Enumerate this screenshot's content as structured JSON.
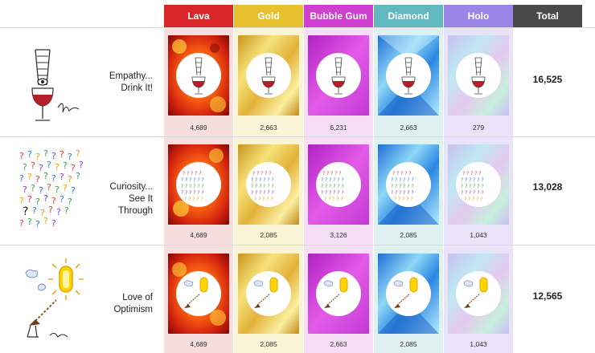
{
  "columns": [
    {
      "label": "Lava",
      "header_color": "#d9262b",
      "col_bg": "#f6dede"
    },
    {
      "label": "Gold",
      "header_color": "#e7c02e",
      "col_bg": "#faf3d6"
    },
    {
      "label": "Bubble Gum",
      "header_color": "#cf3fd0",
      "col_bg": "#f5def6"
    },
    {
      "label": "Diamond",
      "header_color": "#61b9bf",
      "col_bg": "#dff0f1"
    },
    {
      "label": "Holo",
      "header_color": "#9a84e6",
      "col_bg": "#e8e3f8"
    }
  ],
  "total_header": {
    "label": "Total",
    "color": "#4a4a4a"
  },
  "rows": [
    {
      "id": "empathy",
      "label_line1": "Empathy...",
      "label_line2": "Drink It!",
      "counts": [
        "4,689",
        "2,663",
        "6,231",
        "2,663",
        "279"
      ],
      "total": "16,525"
    },
    {
      "id": "curiosity",
      "label_line1": "Curiosity...",
      "label_line2": "See It Through",
      "counts": [
        "4,689",
        "2,085",
        "3,126",
        "2,085",
        "1,043"
      ],
      "total": "13,028"
    },
    {
      "id": "optimism",
      "label_line1": "Love of",
      "label_line2": "Optimism",
      "counts": [
        "4,689",
        "2,085",
        "2,663",
        "2,085",
        "1,043"
      ],
      "total": "12,565"
    }
  ]
}
